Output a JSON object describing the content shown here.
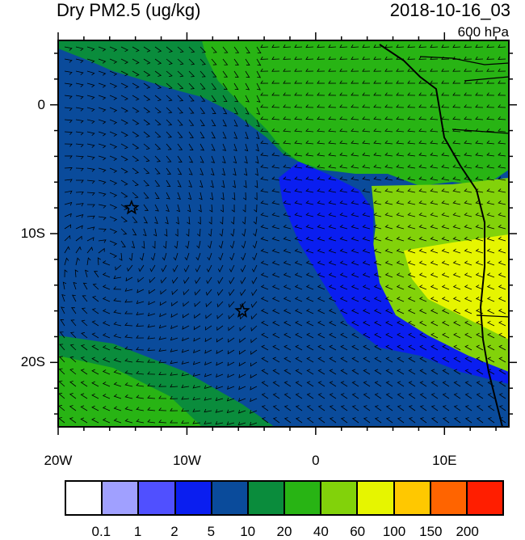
{
  "title": "Dry PM2.5 (ug/kg)",
  "datetime": "2018-10-16_03",
  "level": "600 hPa",
  "lat_ticks": [
    {
      "label": "0",
      "lat": 0
    },
    {
      "label": "10S",
      "lat": -10
    },
    {
      "label": "20S",
      "lat": -20
    }
  ],
  "lon_ticks": [
    {
      "label": "20W",
      "lon": -20
    },
    {
      "label": "10W",
      "lon": -10
    },
    {
      "label": "0",
      "lon": 0
    },
    {
      "label": "10E",
      "lon": 10
    }
  ],
  "extent": {
    "lon": [
      -20,
      15
    ],
    "lat": [
      -25,
      5
    ]
  },
  "markers": [
    {
      "type": "star",
      "lon": -14.3,
      "lat": -8.0
    },
    {
      "type": "star",
      "lon": -5.7,
      "lat": -16.0
    }
  ],
  "colorbar": {
    "colors": [
      "#ffffff",
      "#a0a0ff",
      "#5050ff",
      "#0a1ef0",
      "#0a4b9b",
      "#0a8c3c",
      "#28b414",
      "#82d20a",
      "#e6f500",
      "#ffc800",
      "#ff6400",
      "#ff1e00"
    ],
    "labels": [
      "0.1",
      "1",
      "2",
      "5",
      "10",
      "20",
      "40",
      "60",
      "100",
      "150",
      "200"
    ]
  }
}
